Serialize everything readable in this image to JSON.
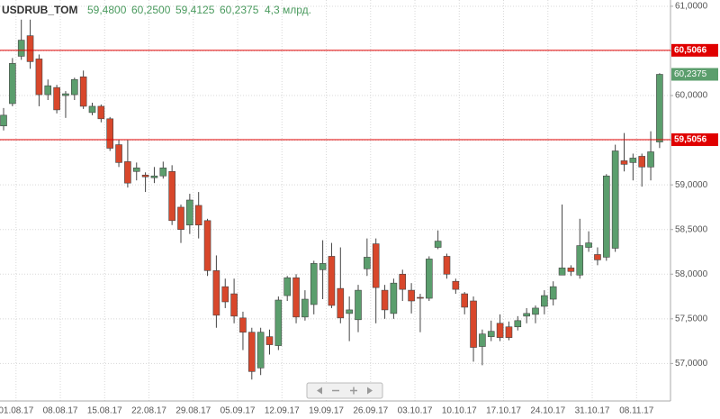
{
  "chart_data": {
    "type": "candlestick",
    "title": "USDRUB_TOM",
    "header_values": [
      "59,4800",
      "60,2500",
      "59,4125",
      "60,2375"
    ],
    "volume": "4,3 млрд.",
    "categories": [
      null,
      "01.08.17",
      null,
      null,
      null,
      null,
      "08.08.17",
      null,
      null,
      null,
      null,
      "15.08.17",
      null,
      null,
      null,
      null,
      "22.08.17",
      null,
      null,
      null,
      null,
      "29.08.17",
      null,
      null,
      null,
      null,
      "05.09.17",
      null,
      null,
      null,
      null,
      "12.09.17",
      null,
      null,
      null,
      null,
      "19.09.17",
      null,
      null,
      null,
      null,
      "26.09.17",
      null,
      null,
      null,
      null,
      "03.10.17",
      null,
      null,
      null,
      null,
      "10.10.17",
      null,
      null,
      null,
      null,
      "17.10.17",
      null,
      null,
      null,
      null,
      "24.10.17",
      null,
      null,
      null,
      null,
      "31.10.17",
      null,
      null,
      null,
      null,
      "08.11.17",
      null,
      null,
      null
    ],
    "open": [
      59.66,
      59.91,
      60.44,
      60.67,
      60.41,
      60.01,
      60.09,
      60.0,
      60.01,
      60.21,
      59.81,
      59.88,
      59.74,
      59.45,
      59.26,
      59.15,
      59.11,
      59.08,
      59.1,
      59.15,
      58.75,
      58.55,
      58.77,
      58.6,
      58.04,
      57.86,
      57.78,
      57.51,
      57.35,
      56.95,
      57.3,
      57.2,
      57.76,
      57.96,
      57.52,
      57.66,
      58.05,
      58.2,
      57.84,
      57.56,
      57.49,
      58.06,
      58.34,
      57.82,
      57.56,
      58.0,
      57.82,
      57.74,
      57.73,
      58.3,
      58.2,
      57.92,
      57.78,
      57.7,
      57.19,
      57.3,
      57.45,
      57.41,
      57.41,
      57.53,
      57.55,
      57.64,
      57.72,
      57.99,
      58.07,
      57.99,
      58.3,
      58.22,
      58.19,
      58.29,
      59.27,
      59.25,
      59.32,
      59.2,
      59.48
    ],
    "high": [
      59.86,
      60.42,
      60.85,
      60.85,
      60.46,
      60.18,
      60.12,
      60.05,
      60.2,
      60.28,
      59.92,
      59.9,
      59.76,
      59.5,
      59.5,
      59.25,
      59.14,
      59.2,
      59.26,
      59.22,
      58.78,
      58.9,
      58.92,
      58.62,
      58.21,
      57.95,
      57.95,
      57.58,
      57.4,
      57.4,
      57.38,
      57.75,
      57.98,
      58.0,
      57.82,
      58.15,
      58.38,
      58.35,
      58.3,
      57.75,
      57.88,
      58.4,
      58.4,
      57.88,
      57.95,
      58.05,
      57.9,
      57.78,
      58.2,
      58.49,
      58.23,
      57.95,
      57.8,
      57.75,
      57.38,
      57.48,
      57.55,
      57.47,
      57.53,
      57.62,
      57.65,
      57.82,
      57.92,
      58.78,
      58.1,
      58.62,
      58.48,
      58.3,
      59.12,
      59.45,
      59.58,
      59.35,
      59.35,
      59.6,
      60.25
    ],
    "low": [
      59.61,
      59.88,
      60.4,
      60.3,
      59.88,
      59.95,
      59.8,
      59.75,
      59.95,
      59.85,
      59.78,
      59.7,
      59.38,
      59.2,
      58.97,
      59.05,
      58.92,
      59.02,
      59.07,
      58.55,
      58.35,
      58.45,
      58.4,
      57.98,
      57.4,
      57.62,
      57.45,
      57.15,
      56.82,
      56.87,
      57.1,
      57.15,
      57.7,
      57.45,
      57.48,
      57.55,
      57.72,
      57.62,
      57.45,
      57.25,
      57.35,
      57.98,
      57.45,
      57.5,
      57.5,
      57.7,
      57.56,
      57.35,
      57.7,
      58.28,
      57.95,
      57.78,
      57.55,
      57.02,
      56.98,
      57.25,
      57.25,
      57.26,
      57.37,
      57.45,
      57.45,
      57.55,
      57.65,
      57.99,
      57.98,
      57.95,
      58.25,
      58.1,
      58.15,
      58.25,
      59.15,
      59.05,
      58.98,
      59.05,
      59.4125
    ],
    "close": [
      59.78,
      60.36,
      60.62,
      60.38,
      60.01,
      60.11,
      59.84,
      60.02,
      60.18,
      59.88,
      59.88,
      59.74,
      59.41,
      59.25,
      59.02,
      59.19,
      59.09,
      59.1,
      59.19,
      58.6,
      58.5,
      58.83,
      58.55,
      58.04,
      57.54,
      57.69,
      57.53,
      57.35,
      56.91,
      57.35,
      57.21,
      57.71,
      57.96,
      57.52,
      57.72,
      58.12,
      58.12,
      57.65,
      57.51,
      57.6,
      57.82,
      58.19,
      57.85,
      57.6,
      57.9,
      57.83,
      57.7,
      57.73,
      58.17,
      58.37,
      58.0,
      57.83,
      57.63,
      57.18,
      57.33,
      57.36,
      57.29,
      57.29,
      57.48,
      57.56,
      57.62,
      57.76,
      57.86,
      58.07,
      58.03,
      58.32,
      58.35,
      58.16,
      59.1,
      59.38,
      59.23,
      59.3,
      59.2,
      59.37,
      60.2375
    ],
    "up_color": "#5b9e6d",
    "down_color": "#d8472b",
    "ylim": [
      56.58,
      61.07
    ],
    "yticks": [
      {
        "value": 57,
        "label": "57,0000"
      },
      {
        "value": 57.5,
        "label": "57,5000"
      },
      {
        "value": 58,
        "label": "58,0000"
      },
      {
        "value": 58.5,
        "label": "58,5000"
      },
      {
        "value": 59,
        "label": "59,0000"
      },
      {
        "value": 59.5,
        "label": "59,5000"
      },
      {
        "value": 60,
        "label": "60,0000"
      },
      {
        "value": 60.5,
        "label": "60,5000"
      },
      {
        "value": 61,
        "label": "61,0000"
      }
    ],
    "levels": [
      {
        "value": 60.5066,
        "label": "60,5066"
      },
      {
        "value": 59.5056,
        "label": "59,5056"
      }
    ],
    "level_color": "#e00000",
    "last_price": {
      "value": 60.2375,
      "label": "60,2375"
    },
    "grid": true
  }
}
